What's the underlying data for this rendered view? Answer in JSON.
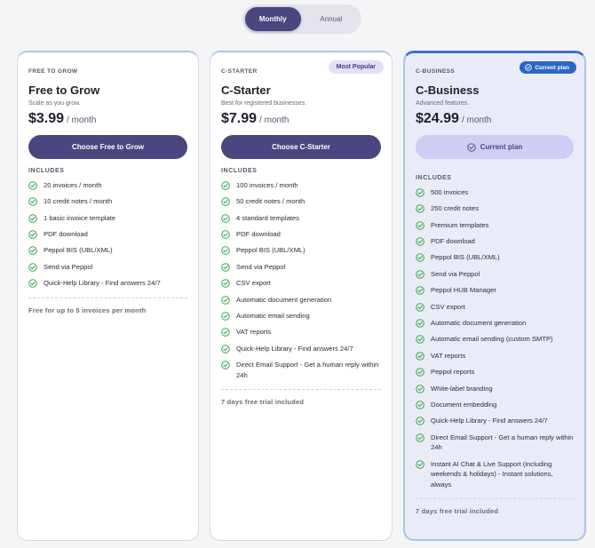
{
  "billing_toggle": {
    "monthly": "Monthly",
    "annual": "Annual",
    "selected": "Monthly"
  },
  "colors": {
    "primary": "#4a4680",
    "check": "#3aa655",
    "current_badge": "#2a68c6",
    "card_accent": "#a8c8f0"
  },
  "plans": [
    {
      "tier": "FREE TO GROW",
      "name": "Free to Grow",
      "subtitle": "Scale as you grow.",
      "price": "$3.99",
      "period": "/ month",
      "cta": "Choose Free to Grow",
      "includes_label": "INCLUDES",
      "features": [
        "20 invoices / month",
        "10 credit notes / month",
        "1 basic invoice template",
        "PDF download",
        "Peppol BIS (UBL/XML)",
        "Send via Peppol",
        "Quick-Help Library - Find answers 24/7"
      ],
      "footnote": "Free for up to 5 invoices per month"
    },
    {
      "tier": "C-STARTER",
      "name": "C-Starter",
      "subtitle": "Best for registered businesses.",
      "price": "$7.99",
      "period": "/ month",
      "badge": "Most Popular",
      "cta": "Choose C-Starter",
      "includes_label": "INCLUDES",
      "features": [
        "100 invoices / month",
        "50 credit notes / month",
        "4 standard templates",
        "PDF download",
        "Peppol BIS (UBL/XML)",
        "Send via Peppol",
        "CSV export",
        "Automatic document generation",
        "Automatic email sending",
        "VAT reports",
        "Quick-Help Library - Find answers 24/7",
        "Direct Email Support - Get a human reply within 24h"
      ],
      "footnote": "7 days free trial included"
    },
    {
      "tier": "C-BUSINESS",
      "name": "C-Business",
      "subtitle": "Advanced features.",
      "price": "$24.99",
      "period": "/ month",
      "badge": "Current plan",
      "cta": "Current plan",
      "includes_label": "INCLUDES",
      "features": [
        "500 invoices",
        "250 credit notes",
        "Premium templates",
        "PDF download",
        "Peppol BIS (UBL/XML)",
        "Send via Peppol",
        "Peppol HUB Manager",
        "CSV export",
        "Automatic document generation",
        "Automatic email sending (custom SMTP)",
        "VAT reports",
        "Peppol reports",
        "White-label branding",
        "Document embedding",
        "Quick-Help Library - Find answers 24/7",
        "Direct Email Support - Get a human reply within 24h",
        "Instant AI Chat & Live Support (including weekends & holidays) - Instant solutions, always"
      ],
      "footnote": "7 days free trial included"
    }
  ]
}
